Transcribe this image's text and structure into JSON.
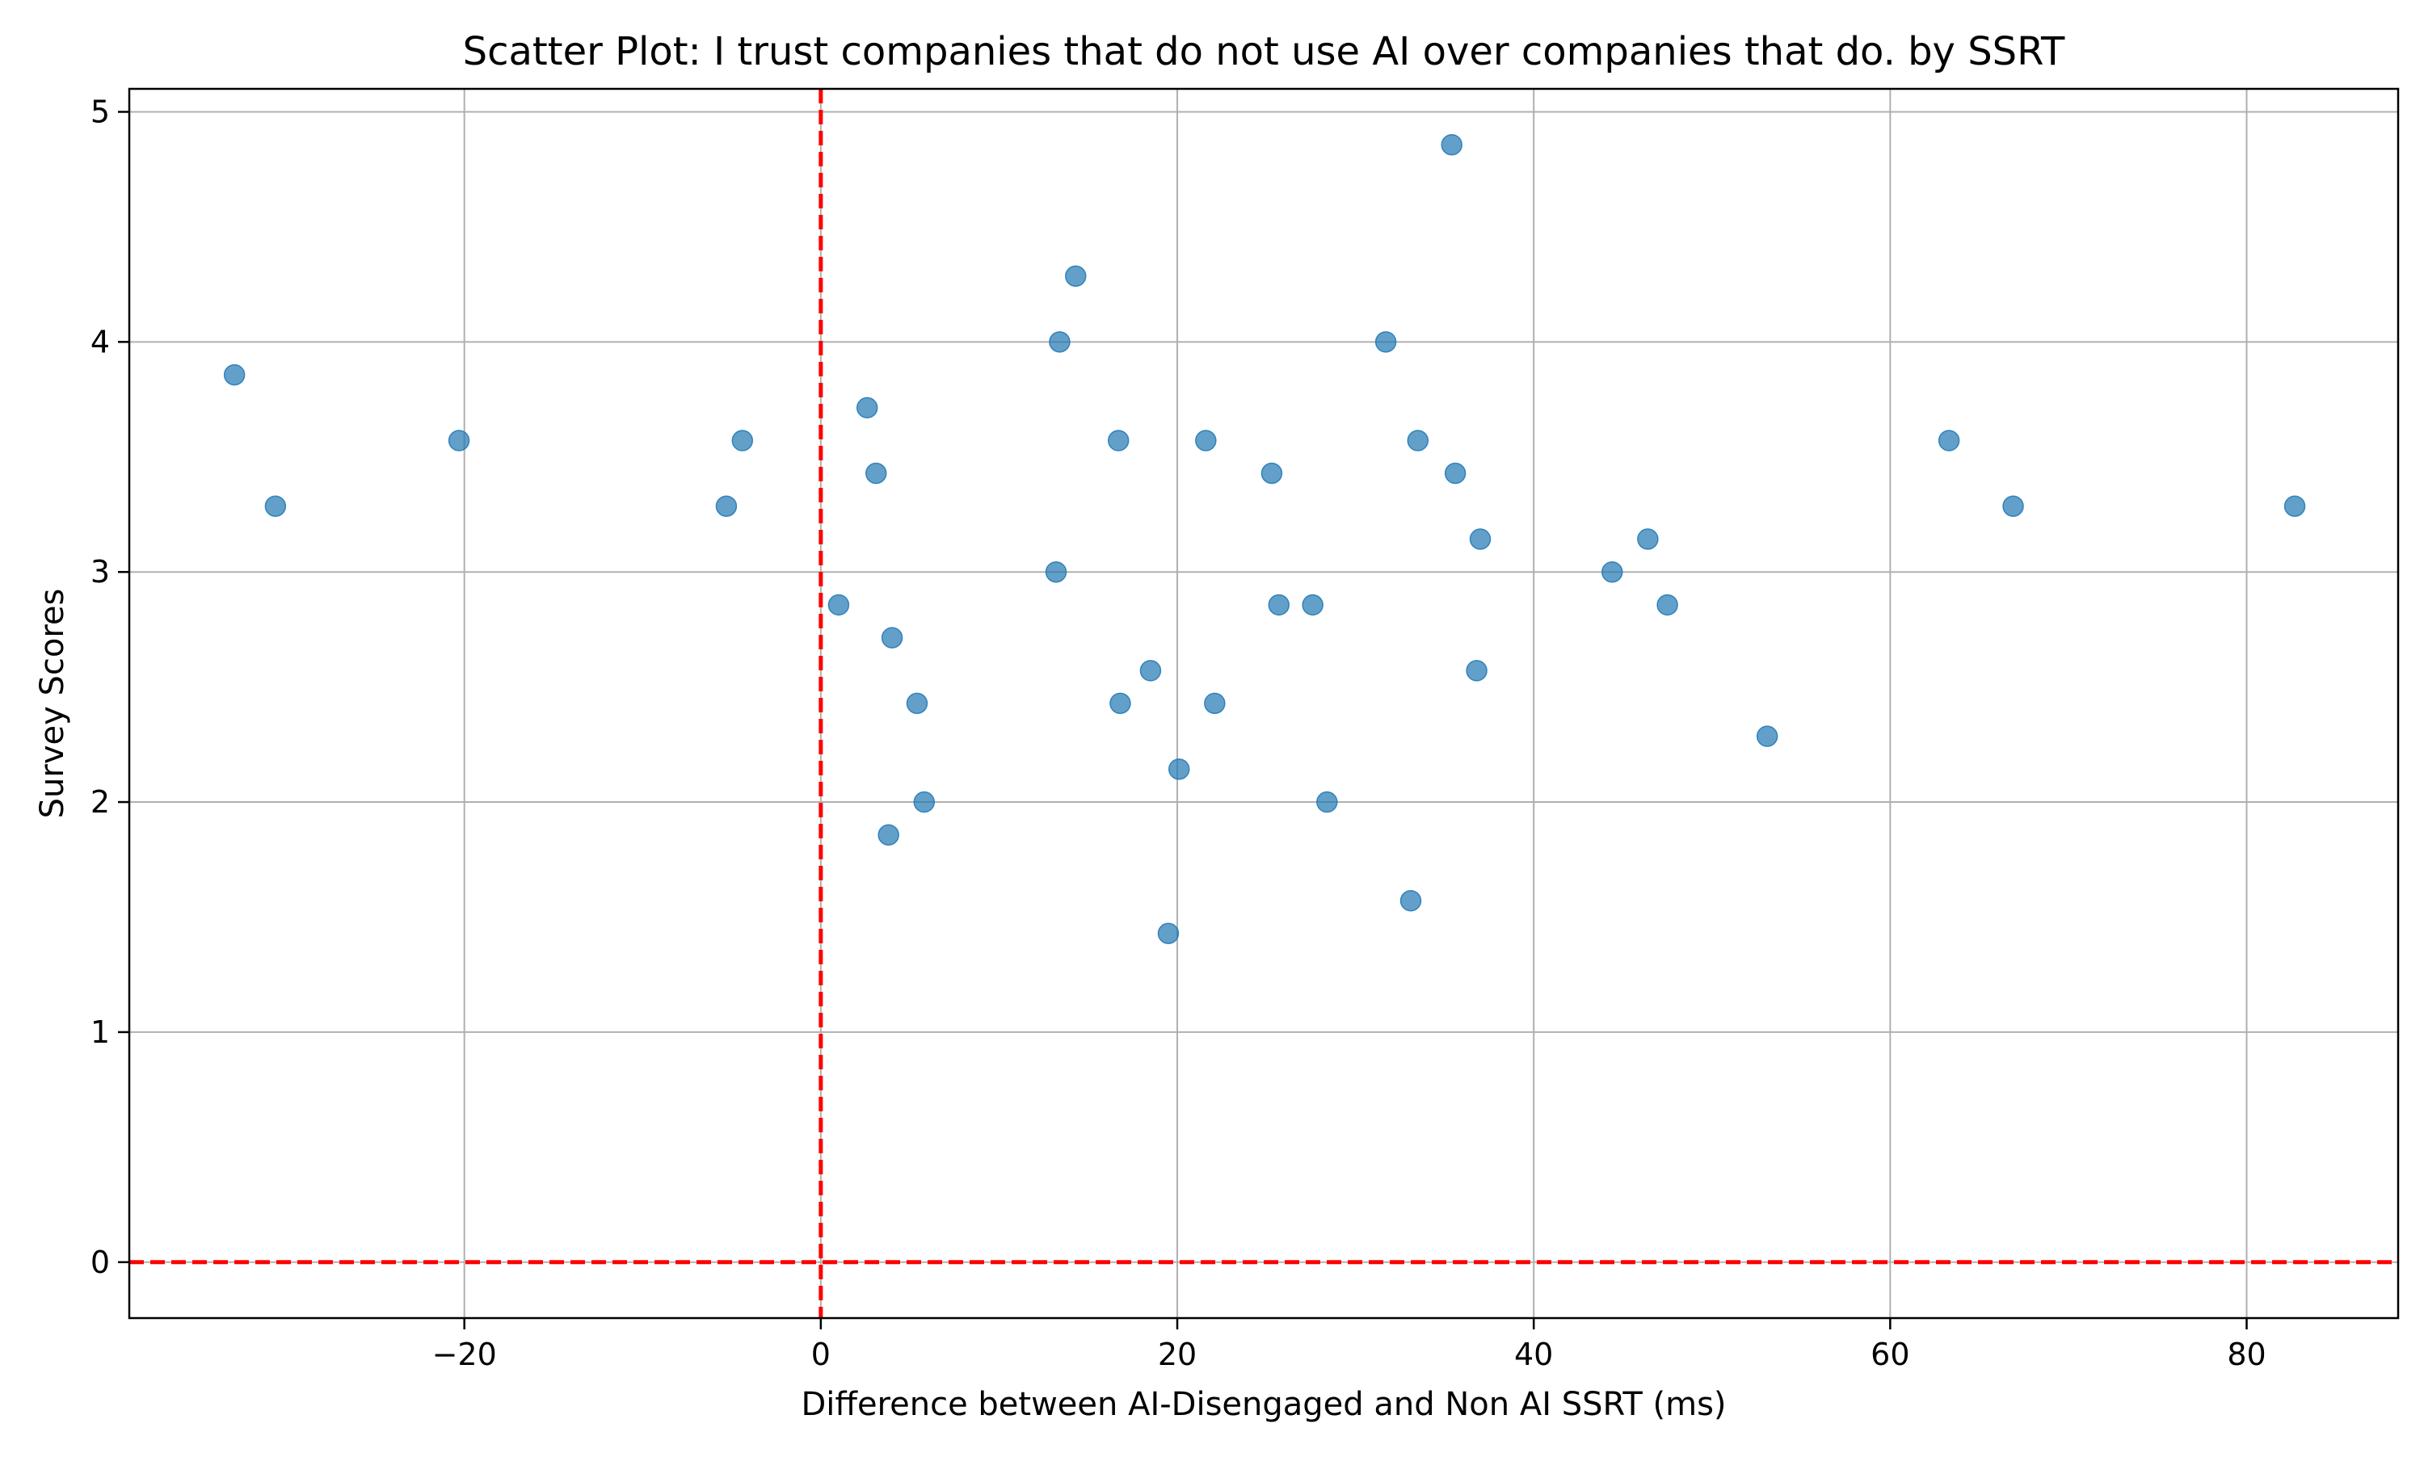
{
  "chart_data": {
    "type": "scatter",
    "title": "Scatter Plot: I trust companies that do not use AI over companies that do. by SSRT",
    "xlabel": "Difference between AI-Disengaged and Non AI SSRT (ms)",
    "ylabel": "Survey Scores",
    "xlim": [
      -38.8,
      88.5
    ],
    "ylim": [
      -0.243,
      5.1
    ],
    "xticks": [
      -20,
      0,
      20,
      40,
      60,
      80
    ],
    "xtick_labels": [
      "−20",
      "0",
      "20",
      "40",
      "60",
      "80"
    ],
    "yticks": [
      0,
      1,
      2,
      3,
      4,
      5
    ],
    "ytick_labels": [
      "0",
      "1",
      "2",
      "3",
      "4",
      "5"
    ],
    "grid": true,
    "reference_lines": {
      "x": 0,
      "y": 0,
      "style": "dashed",
      "color": "#ff0000"
    },
    "marker_color": "#1f77b4",
    "marker_alpha": 0.7,
    "points": [
      {
        "x": -32.9,
        "y": 3.857
      },
      {
        "x": -30.6,
        "y": 3.286
      },
      {
        "x": -20.3,
        "y": 3.571
      },
      {
        "x": -5.3,
        "y": 3.286
      },
      {
        "x": -4.4,
        "y": 3.571
      },
      {
        "x": 1.0,
        "y": 2.857
      },
      {
        "x": 2.6,
        "y": 3.714
      },
      {
        "x": 3.1,
        "y": 3.429
      },
      {
        "x": 3.8,
        "y": 1.857
      },
      {
        "x": 4.0,
        "y": 2.714
      },
      {
        "x": 5.4,
        "y": 2.429
      },
      {
        "x": 5.8,
        "y": 2.0
      },
      {
        "x": 13.2,
        "y": 3.0
      },
      {
        "x": 13.4,
        "y": 4.0
      },
      {
        "x": 14.3,
        "y": 4.286
      },
      {
        "x": 16.7,
        "y": 3.571
      },
      {
        "x": 16.8,
        "y": 2.429
      },
      {
        "x": 18.5,
        "y": 2.571
      },
      {
        "x": 19.5,
        "y": 1.429
      },
      {
        "x": 20.1,
        "y": 2.143
      },
      {
        "x": 21.6,
        "y": 3.571
      },
      {
        "x": 22.1,
        "y": 2.429
      },
      {
        "x": 25.3,
        "y": 3.429
      },
      {
        "x": 25.7,
        "y": 2.857
      },
      {
        "x": 27.6,
        "y": 2.857
      },
      {
        "x": 28.4,
        "y": 2.0
      },
      {
        "x": 31.7,
        "y": 4.0
      },
      {
        "x": 33.1,
        "y": 1.571
      },
      {
        "x": 33.5,
        "y": 3.571
      },
      {
        "x": 35.4,
        "y": 4.857
      },
      {
        "x": 35.6,
        "y": 3.429
      },
      {
        "x": 36.8,
        "y": 2.571
      },
      {
        "x": 37.0,
        "y": 3.143
      },
      {
        "x": 44.4,
        "y": 3.0
      },
      {
        "x": 46.4,
        "y": 3.143
      },
      {
        "x": 47.5,
        "y": 2.857
      },
      {
        "x": 53.1,
        "y": 2.286
      },
      {
        "x": 63.3,
        "y": 3.571
      },
      {
        "x": 66.9,
        "y": 3.286
      },
      {
        "x": 82.7,
        "y": 3.286
      }
    ]
  }
}
